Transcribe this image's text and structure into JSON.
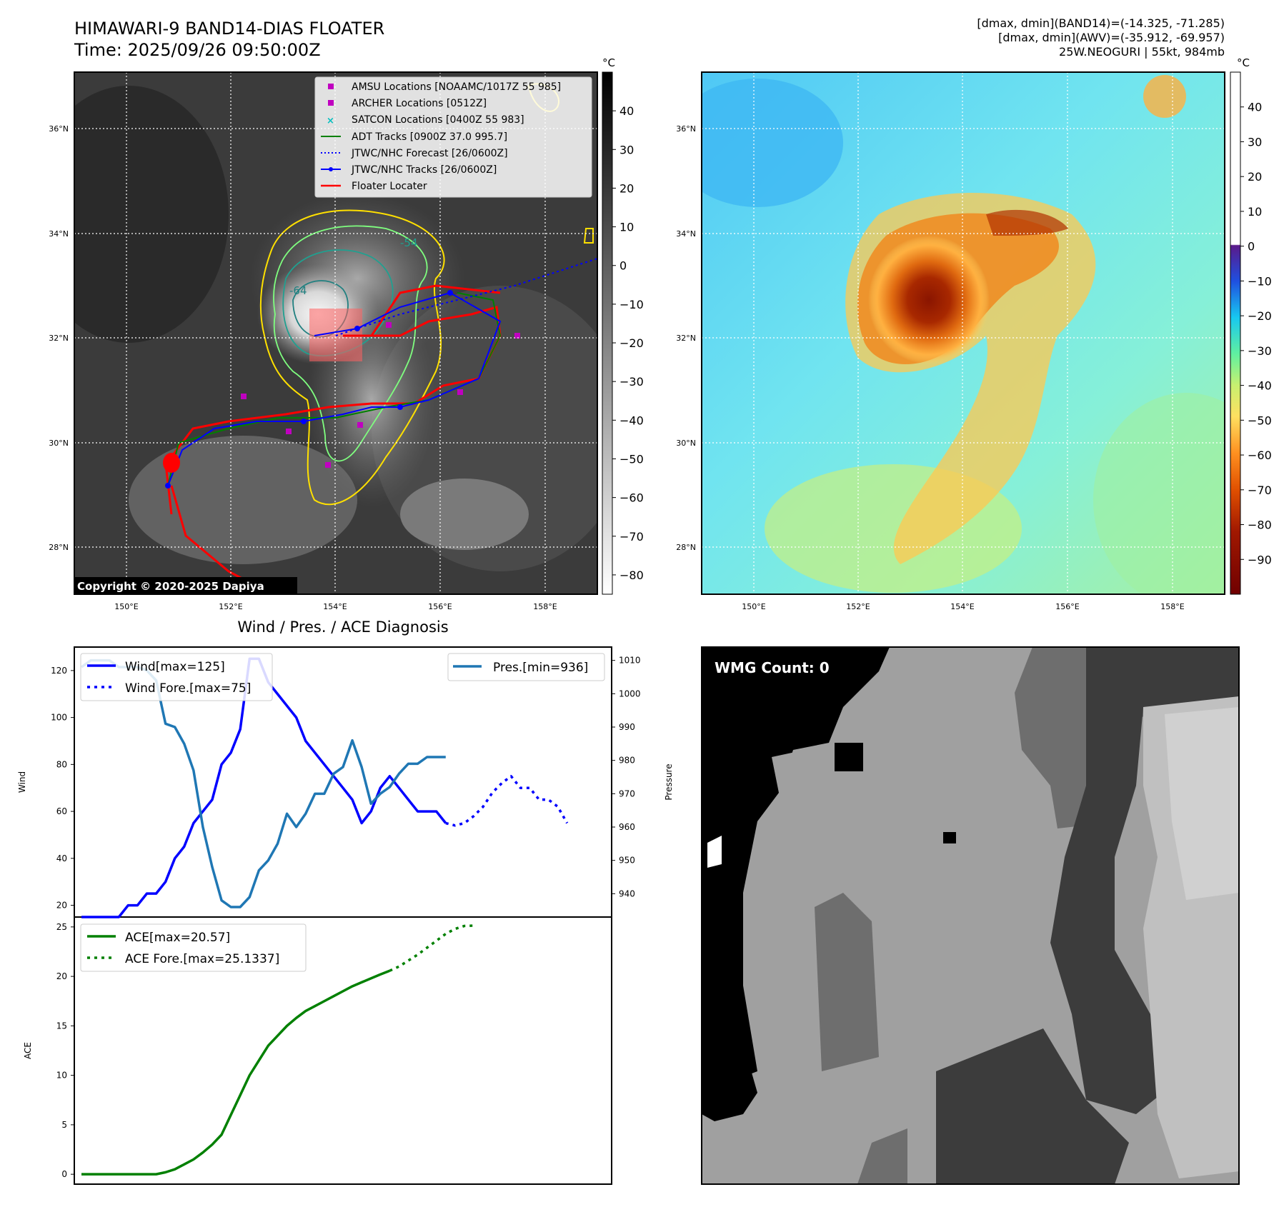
{
  "header": {
    "title": "HIMAWARI-9 BAND14-DIAS FLOATER",
    "time": "Time: 2025/09/26 09:50:00Z",
    "dmax_band14": "[dmax, dmin](BAND14)=(-14.325, -71.285)",
    "dmax_awv": "[dmax, dmin](AWV)=(-35.912, -69.957)",
    "storm": "25W.NEOGURI | 55kt, 984mb"
  },
  "ir_panel": {
    "lat_labels": [
      "36°N",
      "34°N",
      "32°N",
      "30°N",
      "28°N"
    ],
    "lon_labels": [
      "150°E",
      "152°E",
      "154°E",
      "156°E",
      "158°E"
    ],
    "copyright": "Copyright © 2020-2025 Dapiya",
    "contour_labels": [
      "-64",
      "-54"
    ],
    "colorbar": {
      "unit": "°C",
      "ticks": [
        "40",
        "30",
        "20",
        "10",
        "0",
        "−10",
        "−20",
        "−30",
        "−40",
        "−50",
        "−60",
        "−70",
        "−80"
      ],
      "tick_values": [
        40,
        30,
        20,
        10,
        0,
        -10,
        -20,
        -30,
        -40,
        -50,
        -60,
        -70,
        -80
      ],
      "range": [
        -85,
        50
      ]
    },
    "legend": [
      {
        "label": "AMSU Locations [NOAAMC/1017Z 55 985]",
        "kind": "square",
        "color": "#c000c0"
      },
      {
        "label": "ARCHER Locations [0512Z]",
        "kind": "square",
        "color": "#c000c0"
      },
      {
        "label": "SATCON Locations [0400Z 55 983]",
        "kind": "x",
        "color": "#00bfbf"
      },
      {
        "label": "ADT Tracks [0900Z 37.0 995.7]",
        "kind": "line",
        "color": "#008000"
      },
      {
        "label": "JTWC/NHC Forecast [26/0600Z]",
        "kind": "dotted",
        "color": "#0000ff"
      },
      {
        "label": "JTWC/NHC Tracks [26/0600Z]",
        "kind": "line-dot",
        "color": "#0000ff"
      },
      {
        "label": "Floater Locater",
        "kind": "line",
        "color": "#ff0000"
      }
    ]
  },
  "awv_panel": {
    "lat_labels": [
      "36°N",
      "34°N",
      "32°N",
      "30°N",
      "28°N"
    ],
    "lon_labels": [
      "150°E",
      "152°E",
      "154°E",
      "156°E",
      "158°E"
    ],
    "colorbar": {
      "unit": "°C",
      "ticks": [
        "40",
        "30",
        "20",
        "10",
        "0",
        "−10",
        "−20",
        "−30",
        "−40",
        "−50",
        "−60",
        "−70",
        "−80",
        "−90"
      ],
      "tick_values": [
        40,
        30,
        20,
        10,
        0,
        -10,
        -20,
        -30,
        -40,
        -50,
        -60,
        -70,
        -80,
        -90
      ],
      "range": [
        -100,
        50
      ]
    }
  },
  "wmg_panel": {
    "label": "WMG Count: 0"
  },
  "chart_data": [
    {
      "type": "line",
      "title": "Wind / Pres. / ACE Diagnosis",
      "ylabel": "Wind",
      "ylabel2": "Pressure",
      "ylim": [
        15,
        130
      ],
      "ylim2": [
        933,
        1014
      ],
      "y_ticks": [
        20,
        40,
        60,
        80,
        100,
        120
      ],
      "y2_ticks": [
        940,
        950,
        960,
        970,
        980,
        990,
        1000,
        1010
      ],
      "xlim": [
        0,
        56
      ],
      "series": [
        {
          "name": "Wind[max=125]",
          "axis": "left",
          "style": "solid",
          "color": "#0000ff",
          "x": [
            0,
            1,
            2,
            3,
            4,
            5,
            6,
            7,
            8,
            9,
            10,
            11,
            12,
            13,
            14,
            15,
            16,
            17,
            18,
            19,
            20,
            21,
            22,
            23,
            24,
            25,
            26,
            27,
            28,
            29,
            30,
            31,
            32,
            33,
            34,
            35,
            36,
            37,
            38,
            39,
            40,
            41,
            42,
            43,
            44,
            45,
            46,
            47,
            48,
            49,
            50,
            51,
            52,
            53,
            54,
            55
          ],
          "y": [
            15,
            15,
            15,
            15,
            15,
            20,
            20,
            25,
            25,
            30,
            40,
            45,
            55,
            60,
            65,
            80,
            85,
            95,
            125,
            125,
            115,
            110,
            105,
            100,
            90,
            85,
            80,
            75,
            70,
            65,
            55,
            60,
            70,
            75,
            70,
            65,
            60,
            60,
            60,
            55,
            null,
            null,
            null,
            null,
            null,
            null,
            null,
            null,
            null,
            null,
            null,
            null,
            null,
            null,
            null,
            null
          ]
        },
        {
          "name": "Wind Fore.[max=75]",
          "axis": "left",
          "style": "dotted",
          "color": "#0000ff",
          "x": [
            39,
            40,
            41,
            42,
            43,
            44,
            45,
            46,
            47,
            48,
            49,
            50,
            51,
            52
          ],
          "y": [
            55,
            54,
            55,
            58,
            62,
            68,
            72,
            75,
            70,
            70,
            65,
            65,
            62,
            55
          ]
        },
        {
          "name": "Pres.[min=936]",
          "axis": "right",
          "style": "solid",
          "color": "#1f77b4",
          "x": [
            0,
            1,
            2,
            3,
            4,
            5,
            6,
            7,
            8,
            9,
            10,
            11,
            12,
            13,
            14,
            15,
            16,
            17,
            18,
            19,
            20,
            21,
            22,
            23,
            24,
            25,
            26,
            27,
            28,
            29,
            30,
            31,
            32,
            33,
            34,
            35,
            36,
            37,
            38,
            39
          ],
          "y": [
            1008,
            1010,
            1010,
            1010,
            1008,
            1008,
            1008,
            1007,
            1004,
            991,
            990,
            985,
            977,
            960,
            948,
            938,
            936,
            936,
            939,
            947,
            950,
            955,
            964,
            960,
            964,
            970,
            970,
            976,
            978,
            986,
            978,
            967,
            970,
            972,
            976,
            979,
            979,
            981,
            981,
            981
          ]
        }
      ],
      "legend_left": [
        "Wind[max=125]",
        "Wind Fore.[max=75]"
      ],
      "legend_right": [
        "Pres.[min=936]"
      ]
    },
    {
      "type": "line",
      "ylabel": "ACE",
      "ylim": [
        -1,
        26
      ],
      "y_ticks": [
        0,
        5,
        10,
        15,
        20,
        25
      ],
      "xlim": [
        0,
        56
      ],
      "series": [
        {
          "name": "ACE[max=20.57]",
          "style": "solid",
          "color": "#008000",
          "x": [
            0,
            1,
            2,
            3,
            4,
            5,
            6,
            7,
            8,
            9,
            10,
            11,
            12,
            13,
            14,
            15,
            16,
            17,
            18,
            19,
            20,
            21,
            22,
            23,
            24,
            25,
            26,
            27,
            28,
            29,
            30,
            31,
            32,
            33,
            34,
            35,
            36,
            37,
            38,
            39
          ],
          "y": [
            0,
            0,
            0,
            0,
            0,
            0,
            0,
            0,
            0,
            0.2,
            0.5,
            1,
            1.5,
            2.2,
            3,
            4,
            6,
            8,
            10,
            11.5,
            13,
            14,
            15,
            15.8,
            16.5,
            17,
            17.5,
            18,
            18.5,
            19,
            19.4,
            19.8,
            20.2,
            20.57,
            null,
            null,
            null,
            null,
            null,
            null
          ]
        },
        {
          "name": "ACE Fore.[max=25.1337]",
          "style": "dotted",
          "color": "#008000",
          "x": [
            33,
            34,
            35,
            36,
            37,
            38,
            39,
            40,
            41,
            42
          ],
          "y": [
            20.57,
            21,
            21.6,
            22.2,
            22.9,
            23.6,
            24.3,
            24.8,
            25.1,
            25.1337
          ]
        }
      ],
      "legend": [
        "ACE[max=20.57]",
        "ACE Fore.[max=25.1337]"
      ]
    }
  ]
}
